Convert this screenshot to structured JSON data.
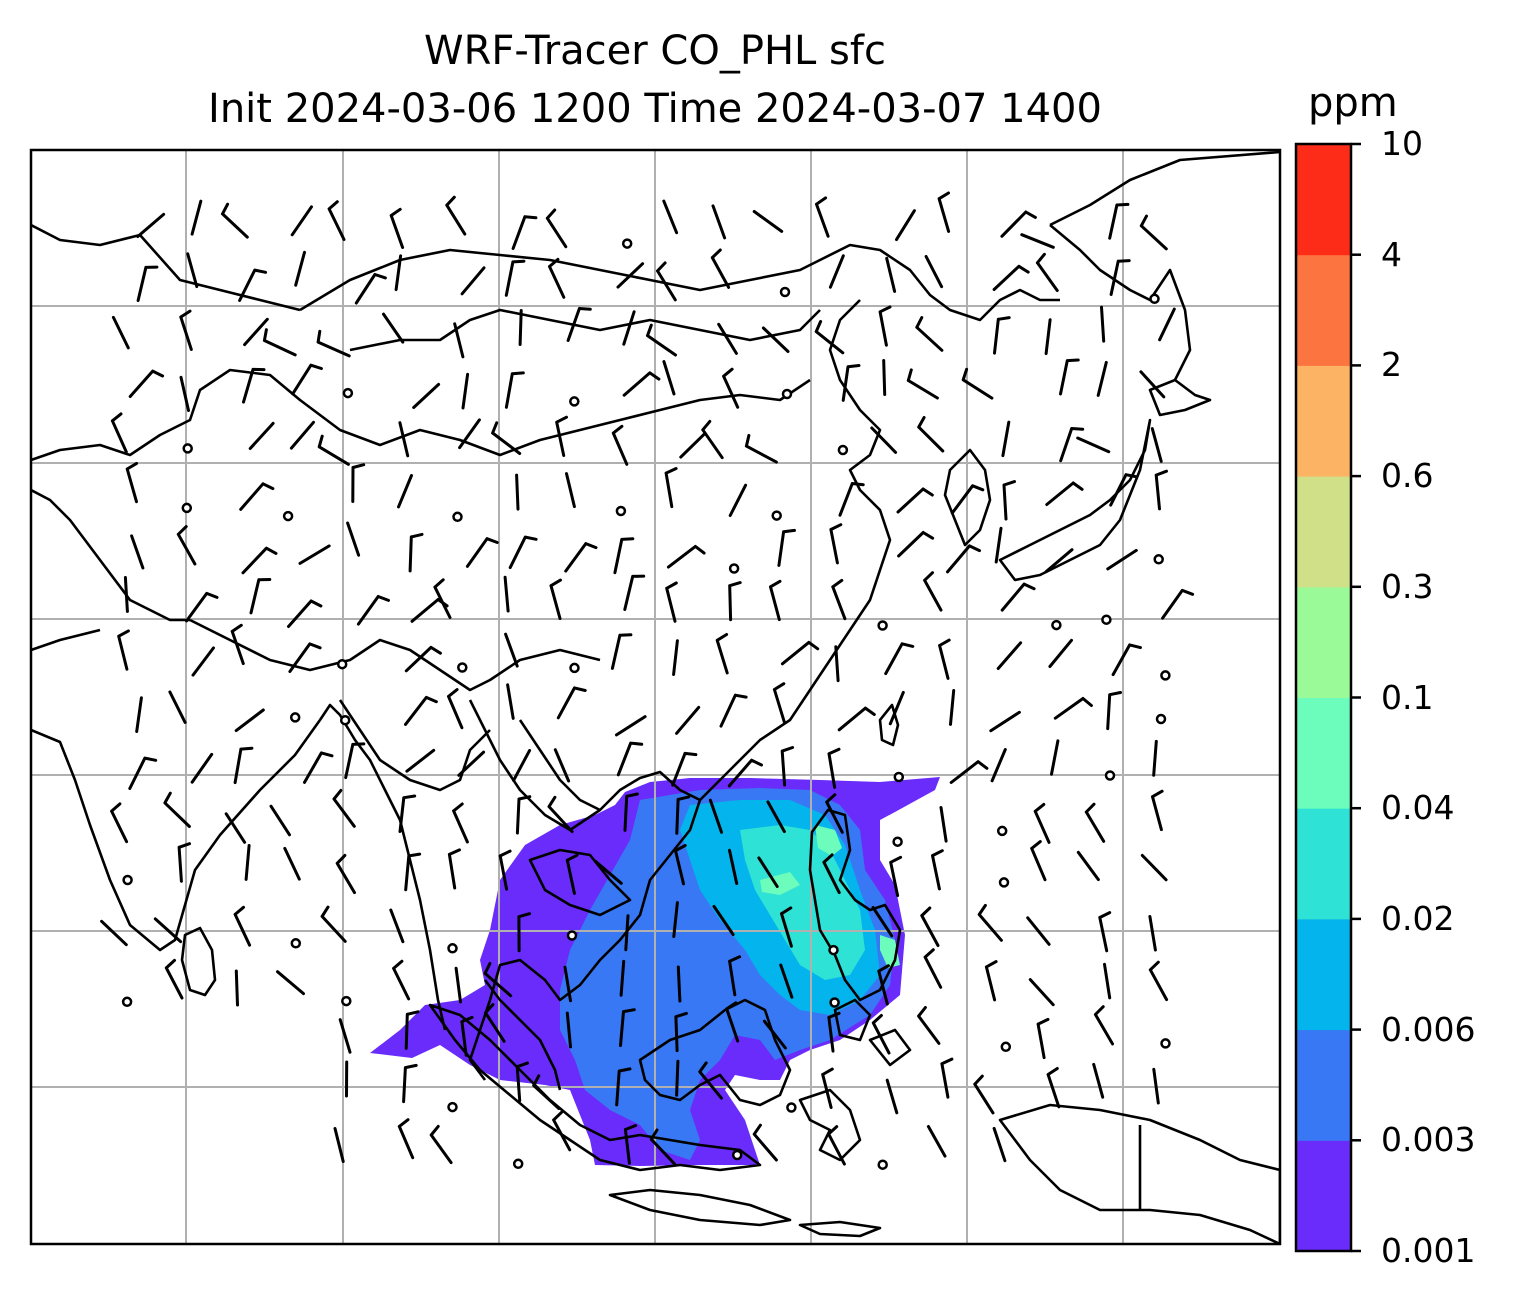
{
  "title": {
    "line1": "WRF-Tracer CO_PHL sfc",
    "line2": "Init 2024-03-06 1200 Time 2024-03-07 1400"
  },
  "colorbar": {
    "unit": "ppm",
    "levels": [
      "0.001",
      "0.003",
      "0.006",
      "0.02",
      "0.04",
      "0.1",
      "0.3",
      "0.6",
      "2",
      "4",
      "10"
    ],
    "colors": [
      "#6a2cfa",
      "#3878f4",
      "#04b4ec",
      "#2ee2d6",
      "#6cfcbc",
      "#9afa98",
      "#d0e088",
      "#fcb464",
      "#fc7440",
      "#fc2c18"
    ]
  },
  "map": {
    "variable": "CO_PHL surface tracer",
    "fill_colors": {
      "level1": "#6a2cfa",
      "level2": "#3878f4",
      "level3": "#04b4ec",
      "level4": "#2ee2d6",
      "level5": "#6cfcbc"
    },
    "coastline_color": "#000000",
    "gridline_color": "#b0b0b0",
    "wind_barb_color": "#000000",
    "features": [
      "coastlines",
      "country-borders",
      "lat-lon-gridlines",
      "wind-barbs",
      "calm-wind-circles"
    ]
  }
}
